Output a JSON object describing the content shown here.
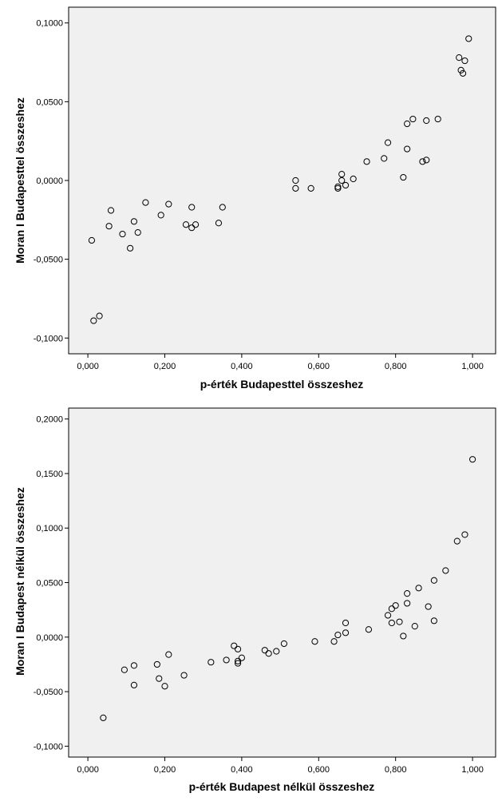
{
  "chart_data": [
    {
      "type": "scatter",
      "title": "",
      "xlabel": "p-érték Budapesttel összeshez",
      "ylabel": "Moran I Budapesttel összeshez",
      "xlim": [
        -0.05,
        1.06
      ],
      "ylim": [
        -0.11,
        0.11
      ],
      "grid": false,
      "x_ticks": [
        0.0,
        0.2,
        0.4,
        0.6,
        0.8,
        1.0
      ],
      "x_tick_labels": [
        "0,000",
        "0,200",
        "0,400",
        "0,600",
        "0,800",
        "1,000"
      ],
      "y_ticks": [
        -0.1,
        -0.05,
        0.0,
        0.05,
        0.1
      ],
      "y_tick_labels": [
        "-0,1000",
        "-0,0500",
        "0,0000",
        "0,0500",
        "0,1000"
      ],
      "points": [
        [
          0.01,
          -0.038
        ],
        [
          0.015,
          -0.089
        ],
        [
          0.03,
          -0.086
        ],
        [
          0.055,
          -0.029
        ],
        [
          0.06,
          -0.019
        ],
        [
          0.09,
          -0.034
        ],
        [
          0.11,
          -0.043
        ],
        [
          0.12,
          -0.026
        ],
        [
          0.13,
          -0.033
        ],
        [
          0.15,
          -0.014
        ],
        [
          0.19,
          -0.022
        ],
        [
          0.21,
          -0.015
        ],
        [
          0.255,
          -0.028
        ],
        [
          0.27,
          -0.017
        ],
        [
          0.27,
          -0.03
        ],
        [
          0.28,
          -0.028
        ],
        [
          0.34,
          -0.027
        ],
        [
          0.35,
          -0.017
        ],
        [
          0.54,
          0.0
        ],
        [
          0.54,
          -0.005
        ],
        [
          0.58,
          -0.005
        ],
        [
          0.65,
          -0.005
        ],
        [
          0.65,
          -0.004
        ],
        [
          0.66,
          0.004
        ],
        [
          0.66,
          0.0
        ],
        [
          0.67,
          -0.003
        ],
        [
          0.69,
          0.001
        ],
        [
          0.725,
          0.012
        ],
        [
          0.77,
          0.014
        ],
        [
          0.78,
          0.024
        ],
        [
          0.82,
          0.002
        ],
        [
          0.83,
          0.02
        ],
        [
          0.83,
          0.036
        ],
        [
          0.845,
          0.039
        ],
        [
          0.87,
          0.012
        ],
        [
          0.88,
          0.013
        ],
        [
          0.88,
          0.038
        ],
        [
          0.91,
          0.039
        ],
        [
          0.965,
          0.078
        ],
        [
          0.97,
          0.07
        ],
        [
          0.975,
          0.068
        ],
        [
          0.98,
          0.076
        ],
        [
          0.99,
          0.09
        ]
      ]
    },
    {
      "type": "scatter",
      "title": "",
      "xlabel": "p-érték Budapest nélkül összeshez",
      "ylabel": "Moran I Budapest nélkül összeshez",
      "xlim": [
        -0.05,
        1.06
      ],
      "ylim": [
        -0.11,
        0.21
      ],
      "grid": false,
      "x_ticks": [
        0.0,
        0.2,
        0.4,
        0.6,
        0.8,
        1.0
      ],
      "x_tick_labels": [
        "0,000",
        "0,200",
        "0,400",
        "0,600",
        "0,800",
        "1,000"
      ],
      "y_ticks": [
        -0.1,
        -0.05,
        0.0,
        0.05,
        0.1,
        0.15,
        0.2
      ],
      "y_tick_labels": [
        "-0,1000",
        "-0,0500",
        "0,0000",
        "0,0500",
        "0,1000",
        "0,1500",
        "0,2000"
      ],
      "points": [
        [
          0.04,
          -0.074
        ],
        [
          0.095,
          -0.03
        ],
        [
          0.12,
          -0.026
        ],
        [
          0.12,
          -0.044
        ],
        [
          0.18,
          -0.025
        ],
        [
          0.185,
          -0.038
        ],
        [
          0.2,
          -0.045
        ],
        [
          0.21,
          -0.016
        ],
        [
          0.25,
          -0.035
        ],
        [
          0.32,
          -0.023
        ],
        [
          0.36,
          -0.021
        ],
        [
          0.38,
          -0.008
        ],
        [
          0.39,
          -0.022
        ],
        [
          0.39,
          -0.024
        ],
        [
          0.39,
          -0.011
        ],
        [
          0.4,
          -0.019
        ],
        [
          0.46,
          -0.012
        ],
        [
          0.47,
          -0.015
        ],
        [
          0.49,
          -0.013
        ],
        [
          0.51,
          -0.006
        ],
        [
          0.59,
          -0.004
        ],
        [
          0.64,
          -0.004
        ],
        [
          0.65,
          0.002
        ],
        [
          0.67,
          0.004
        ],
        [
          0.67,
          0.013
        ],
        [
          0.73,
          0.007
        ],
        [
          0.78,
          0.02
        ],
        [
          0.79,
          0.013
        ],
        [
          0.79,
          0.026
        ],
        [
          0.8,
          0.029
        ],
        [
          0.81,
          0.014
        ],
        [
          0.82,
          0.001
        ],
        [
          0.83,
          0.031
        ],
        [
          0.83,
          0.04
        ],
        [
          0.85,
          0.01
        ],
        [
          0.86,
          0.045
        ],
        [
          0.885,
          0.028
        ],
        [
          0.9,
          0.015
        ],
        [
          0.9,
          0.052
        ],
        [
          0.93,
          0.061
        ],
        [
          0.96,
          0.088
        ],
        [
          0.98,
          0.094
        ],
        [
          1.0,
          0.163
        ]
      ]
    }
  ]
}
